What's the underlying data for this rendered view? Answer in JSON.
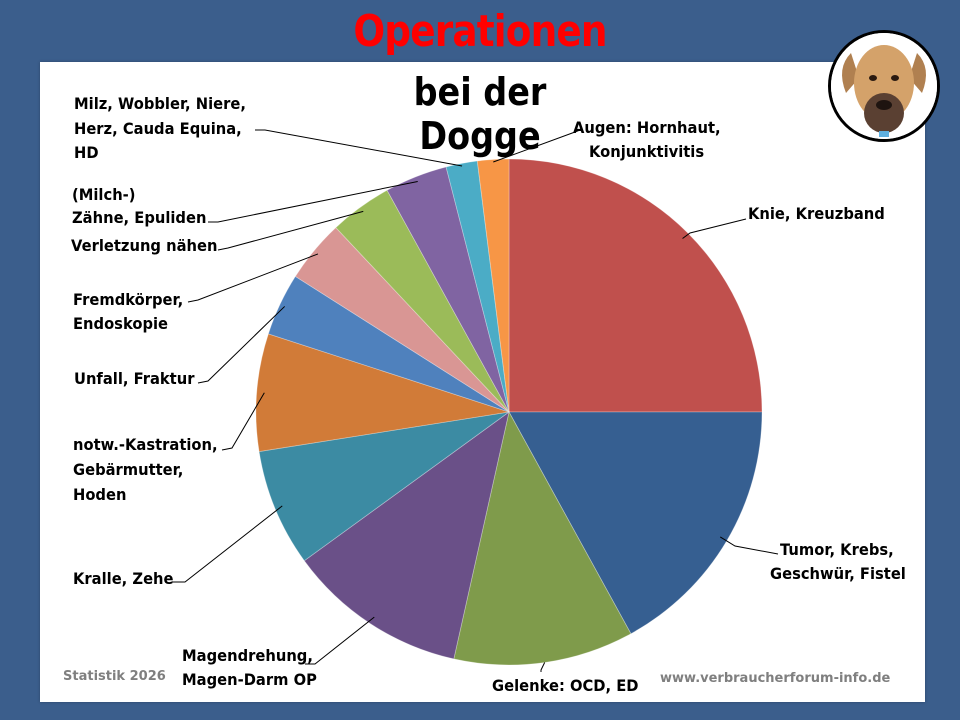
{
  "title": "Operationen",
  "subtitle": "bei der Dogge",
  "footer": {
    "left": "Statistik 2026",
    "right": "www.verbraucherforum-info.de"
  },
  "colors": {
    "background": "#3b5e8c",
    "panel": "#ffffff",
    "title": "#ff0000"
  },
  "image": {
    "icon": "great-dane-dog-photo"
  },
  "labels": {
    "knie": "Knie, Kreuzband",
    "tumor_1": "Tumor, Krebs,",
    "tumor_2": "Geschwür, Fistel",
    "gelenke": "Gelenke: OCD, ED",
    "magen_1": "Magendrehung,",
    "magen_2": "Magen-Darm OP",
    "kralle": "Kralle, Zehe",
    "kastration_1": "notw.-Kastration,",
    "kastration_2": "Gebärmutter,",
    "kastration_3": "Hoden",
    "unfall": "Unfall, Fraktur",
    "fremd_1": "Fremdkörper,",
    "fremd_2": "Endoskopie",
    "verletzung": "Verletzung nähen",
    "zaehne_1": "(Milch-)",
    "zaehne_2": "Zähne, Epuliden",
    "milz_1": "Milz,  Wobbler,  Niere,",
    "milz_2": "Herz,   Cauda   Equina,",
    "milz_3": "HD",
    "augen_1": "Augen: Hornhaut,",
    "augen_2": "Konjunktivitis"
  },
  "chart_data": {
    "type": "pie",
    "title": "Operationen bei der Dogge",
    "start_angle": "12 o'clock, clockwise",
    "categories": [
      "Knie, Kreuzband",
      "Tumor, Krebs, Geschwür, Fistel",
      "Gelenke: OCD, ED",
      "Magendrehung, Magen-Darm OP",
      "Kralle, Zehe",
      "notw.-Kastration, Gebärmutter, Hoden",
      "Unfall, Fraktur",
      "Fremdkörper, Endoskopie",
      "Verletzung nähen",
      "(Milch-) Zähne, Epuliden",
      "Milz, Wobbler, Niere, Herz, Cauda Equina, HD",
      "Augen: Hornhaut, Konjunktivitis"
    ],
    "values": [
      25,
      17,
      11.5,
      11.5,
      7.5,
      7.5,
      4,
      4,
      4,
      4,
      2,
      2
    ],
    "colors": [
      "#c0504d",
      "#365f91",
      "#7f9b4b",
      "#6a5088",
      "#3c8ba3",
      "#d17b38",
      "#4f81bd",
      "#d99694",
      "#9bbb59",
      "#8064a2",
      "#4bacc6",
      "#f79646"
    ],
    "legend": "none (leader-line labels)",
    "footnote": "Statistik 2026"
  }
}
